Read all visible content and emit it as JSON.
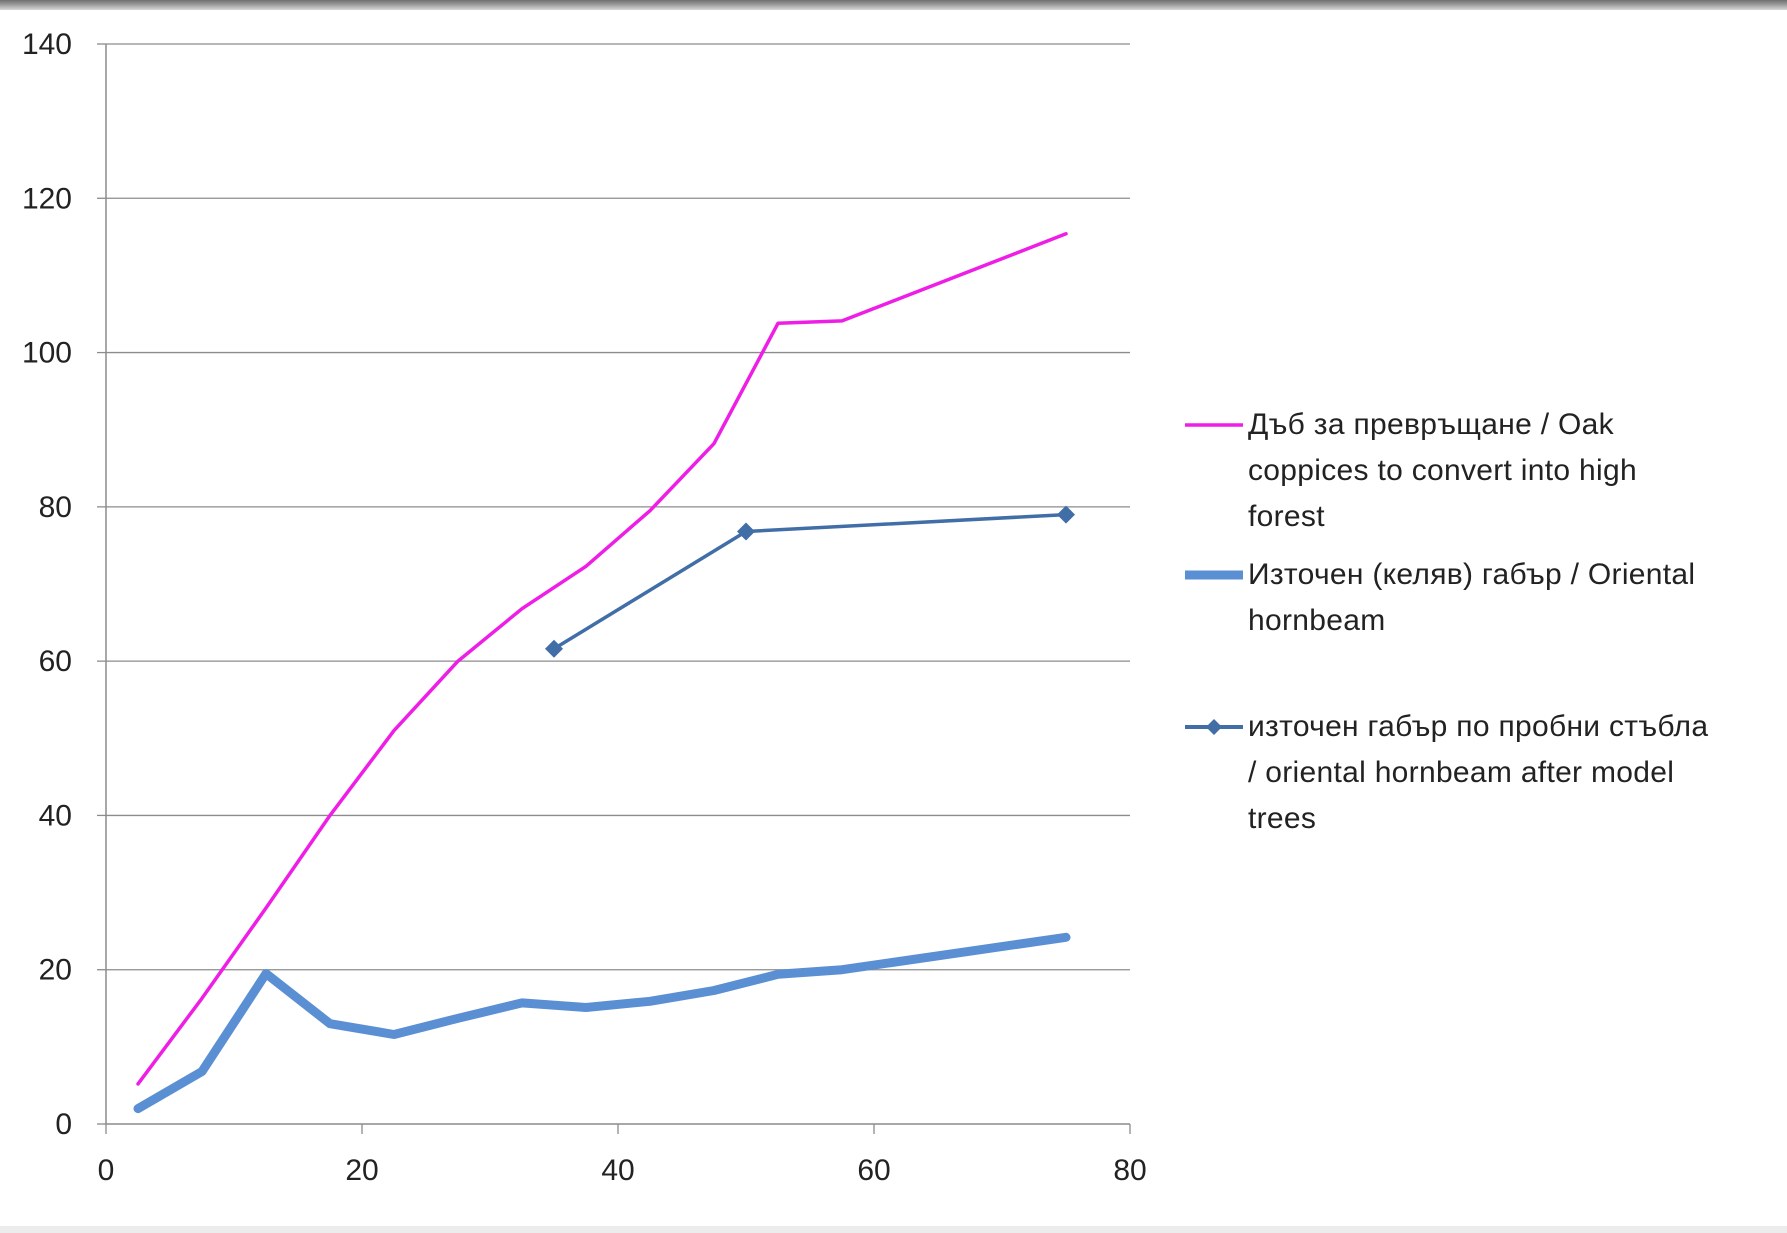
{
  "chart_data": {
    "type": "line",
    "title": "",
    "xlabel": "",
    "ylabel": "",
    "xlim": [
      0,
      80
    ],
    "ylim": [
      0,
      140
    ],
    "x_ticks": [
      0,
      20,
      40,
      60,
      80
    ],
    "y_ticks": [
      0,
      20,
      40,
      60,
      80,
      100,
      120,
      140
    ],
    "x_tick_labels": [
      "0",
      "20",
      "40",
      "60",
      "80"
    ],
    "y_tick_labels": [
      "0",
      "20",
      "40",
      "60",
      "80",
      "100",
      "120",
      "140"
    ],
    "grid": "horizontal",
    "legend_position": "right",
    "series": [
      {
        "name": "Дъб за превръщане  / Oak coppices to convert into high forest",
        "color": "#ee1ee6",
        "line": "thin",
        "marker": "none",
        "x": [
          2.5,
          7.5,
          12.5,
          17.5,
          22.5,
          27.5,
          32.5,
          37.5,
          42.5,
          47.5,
          52.5,
          57.5,
          75
        ],
        "y": [
          5.2,
          16.3,
          28,
          40,
          51,
          60,
          66.8,
          72.3,
          79.5,
          88.2,
          103.8,
          104.1,
          115.4
        ]
      },
      {
        "name": "Източен (келяв) габър / Oriental hornbeam",
        "color": "#5b8fd3",
        "line": "thick",
        "marker": "none",
        "x": [
          2.5,
          7.5,
          12.5,
          17.5,
          22.5,
          27.5,
          32.5,
          37.5,
          42.5,
          47.5,
          52.5,
          57.5,
          75
        ],
        "y": [
          2,
          6.8,
          19.5,
          13,
          11.6,
          13.7,
          15.7,
          15.1,
          15.9,
          17.3,
          19.4,
          20,
          24.2
        ]
      },
      {
        "name": "източен габър по пробни стъбла / oriental hornbeam after model trees",
        "color": "#426ea8",
        "line": "medium",
        "marker": "diamond",
        "x": [
          35,
          50,
          75
        ],
        "y": [
          61.6,
          76.8,
          79
        ]
      }
    ],
    "legend": [
      [
        "Дъб за превръщане  / Oak",
        "coppices to convert into high",
        "forest"
      ],
      [
        "Източен (келяв) габър / Oriental",
        "hornbeam"
      ],
      [
        "източен габър по пробни стъбла",
        "/ oriental hornbeam after model",
        "trees"
      ]
    ]
  }
}
